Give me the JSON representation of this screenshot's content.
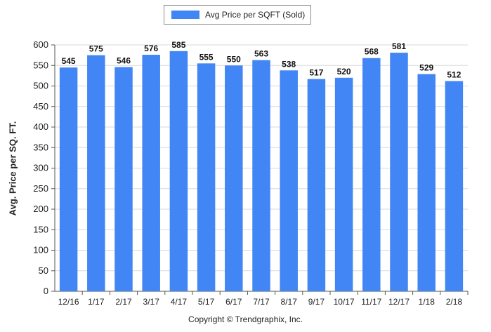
{
  "legend": {
    "label": "Avg Price per SQFT (Sold)"
  },
  "footer": {
    "copyright": "Copyright © Trendgraphix, Inc."
  },
  "chart_data": {
    "type": "bar",
    "title": "",
    "xlabel": "",
    "ylabel": "Avg. Price per SQ. FT.",
    "ylim": [
      0,
      600
    ],
    "yticks": [
      0,
      50,
      100,
      150,
      200,
      250,
      300,
      350,
      400,
      450,
      500,
      550,
      600
    ],
    "grid": true,
    "legend_position": "top-center",
    "bar_color": "#4285F4",
    "categories": [
      "12/16",
      "1/17",
      "2/17",
      "3/17",
      "4/17",
      "5/17",
      "6/17",
      "7/17",
      "8/17",
      "9/17",
      "10/17",
      "11/17",
      "12/17",
      "1/18",
      "2/18"
    ],
    "series": [
      {
        "name": "Avg Price per SQFT (Sold)",
        "values": [
          545,
          575,
          546,
          576,
          585,
          555,
          550,
          563,
          538,
          517,
          520,
          568,
          581,
          529,
          512
        ]
      }
    ]
  }
}
